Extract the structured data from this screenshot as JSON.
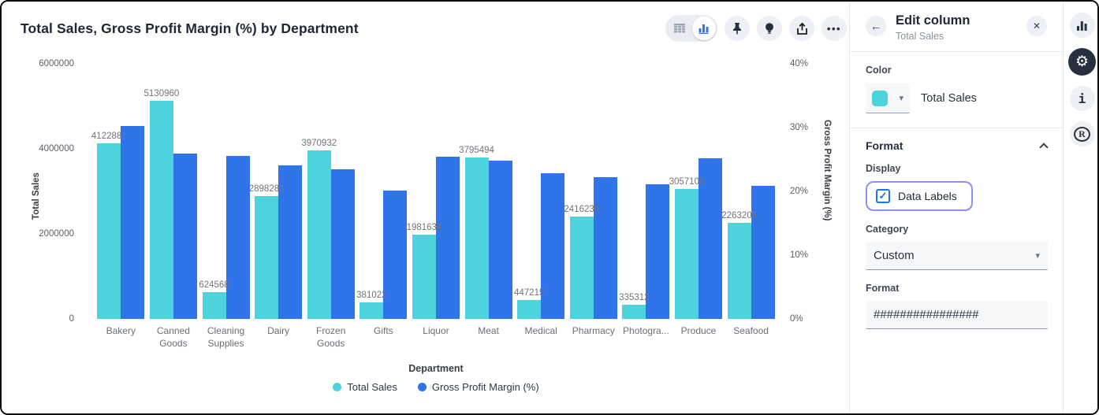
{
  "chart": {
    "title": "Total Sales, Gross Profit Margin (%) by Department",
    "toolbar": {
      "icons": [
        "table-view-toggle",
        "chart-view-toggle",
        "pin",
        "lightbulb",
        "export",
        "more-options"
      ],
      "active_view": "chart"
    },
    "colors": {
      "total_sales": "#4dd3dc",
      "gross_profit_margin": "#2f74eb"
    }
  },
  "chart_data": {
    "type": "bar",
    "title": "Total Sales, Gross Profit Margin (%) by Department",
    "categories": [
      "Bakery",
      "Canned Goods",
      "Cleaning Supplies",
      "Dairy",
      "Frozen Goods",
      "Gifts",
      "Liquor",
      "Meat",
      "Medical",
      "Pharmacy",
      "Photogra...",
      "Produce",
      "Seafood"
    ],
    "series": [
      {
        "name": "Total Sales",
        "axis": "left",
        "color": "#4dd3dc",
        "values": [
          4122881,
          5130960,
          624568,
          2898285,
          3970932,
          381022,
          1981634,
          3795494,
          447215,
          2416230,
          335312,
          3057105,
          2263205
        ]
      },
      {
        "name": "Gross Profit Margin (%)",
        "axis": "right",
        "color": "#2f74eb",
        "values": [
          30.2,
          25.9,
          25.6,
          24.1,
          23.4,
          20.1,
          25.4,
          24.8,
          22.8,
          22.2,
          21.1,
          25.2,
          20.9
        ]
      }
    ],
    "data_labels": [
      "4122881",
      "5130960",
      "624568",
      "2898285",
      "3970932",
      "381022",
      "1981634",
      "3795494",
      "447215",
      "2416230",
      "335312",
      "3057105",
      "2263205"
    ],
    "left_axis": {
      "label": "Total Sales",
      "max": 6000000,
      "ticks": [
        6000000,
        4000000,
        2000000,
        0
      ],
      "tick_labels": [
        "6000000",
        "4000000",
        "2000000",
        "0"
      ]
    },
    "right_axis": {
      "label": "Gross Profit Margin (%)",
      "max": 40,
      "ticks": [
        40,
        30,
        20,
        10,
        0
      ],
      "tick_labels": [
        "40%",
        "30%",
        "20%",
        "10%",
        "0%"
      ]
    },
    "xlabel": "Department",
    "legend_position": "bottom",
    "grid": false
  },
  "panel": {
    "title": "Edit column",
    "subtitle": "Total Sales",
    "back_glyph": "←",
    "close_glyph": "✕",
    "color_label": "Color",
    "color_value": "Total Sales",
    "format_section_title": "Format",
    "display_label": "Display",
    "data_labels_checkbox": {
      "label": "Data Labels",
      "checked": true,
      "check_glyph": "✓"
    },
    "category_label": "Category",
    "category_value": "Custom",
    "format_label": "Format",
    "format_value": "################",
    "caret_glyph": "▾"
  },
  "rail": {
    "icons": [
      "chart",
      "settings-gear",
      "info",
      "r-logo"
    ],
    "active": "settings-gear",
    "gear_glyph": "⚙",
    "info_glyph": "i",
    "r_glyph": "R"
  }
}
